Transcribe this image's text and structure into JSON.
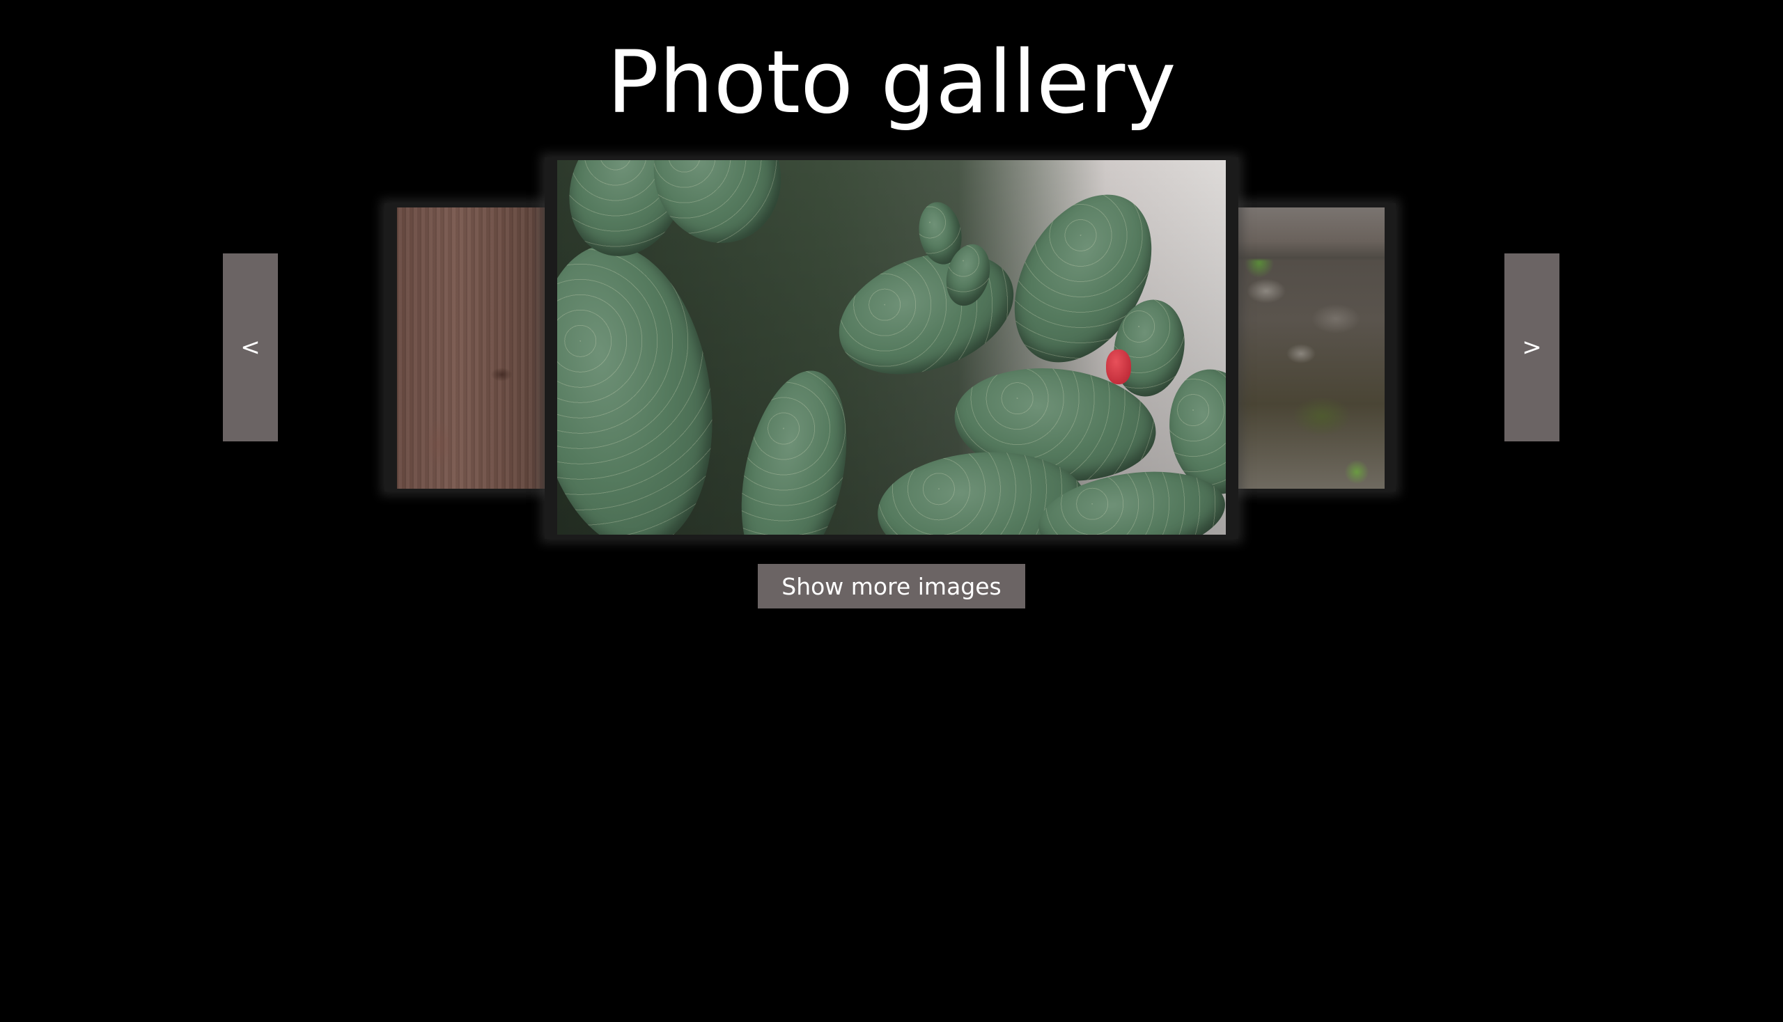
{
  "page": {
    "title": "Photo gallery",
    "background_color": "#000000"
  },
  "carousel": {
    "prev_label": "<",
    "next_label": ">",
    "button_color": "#6b6464",
    "slides": [
      {
        "position": "previous",
        "subject": "wood-texture"
      },
      {
        "position": "current",
        "subject": "prickly-pear-cactus"
      },
      {
        "position": "next",
        "subject": "stone-wall-with-moss"
      }
    ]
  },
  "actions": {
    "show_more_label": "Show more images"
  }
}
